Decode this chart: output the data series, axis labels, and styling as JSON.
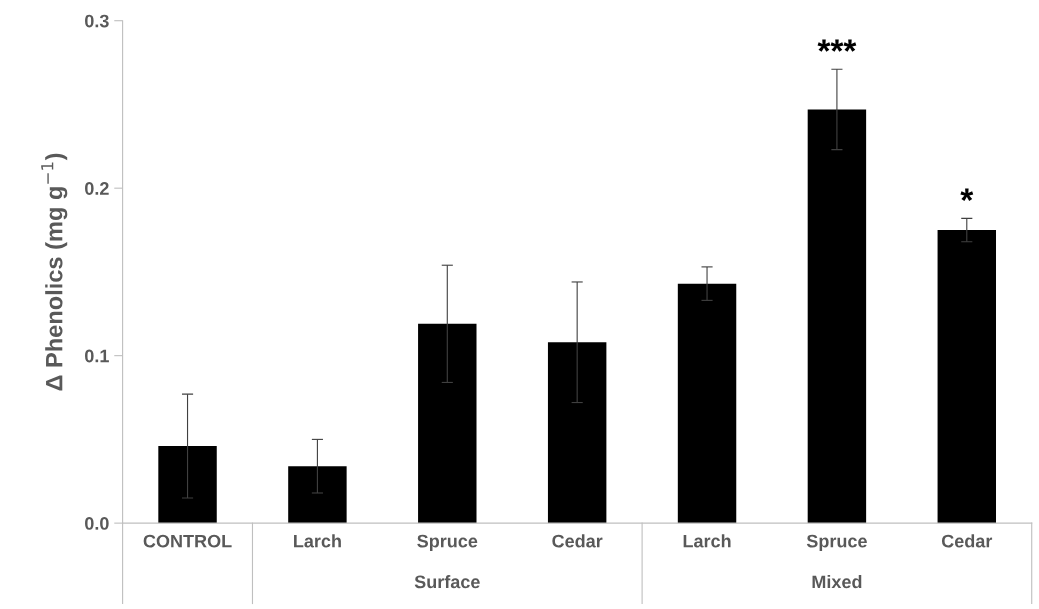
{
  "chart_data": {
    "type": "bar",
    "ylabel": "Δ Phenolics (mg g$^{−1}$)",
    "categories": [
      "CONTROL",
      "Larch",
      "Spruce",
      "Cedar",
      "Larch",
      "Spruce",
      "Cedar"
    ],
    "values": [
      0.046,
      0.034,
      0.119,
      0.108,
      0.143,
      0.247,
      0.175
    ],
    "errors": [
      0.031,
      0.016,
      0.035,
      0.036,
      0.01,
      0.024,
      0.007
    ],
    "color": "#000000",
    "ylim": [
      0,
      0.3
    ],
    "yticks": [
      {
        "value": 0,
        "label": "0.0"
      },
      {
        "value": 0.1,
        "label": "0.1"
      },
      {
        "value": 0.2,
        "label": "0.2"
      },
      {
        "value": 0.3,
        "label": "0.3"
      }
    ],
    "grid": false,
    "legend": false,
    "annotations": [
      "***",
      "*",
      "Surface",
      "Mixed"
    ]
  }
}
